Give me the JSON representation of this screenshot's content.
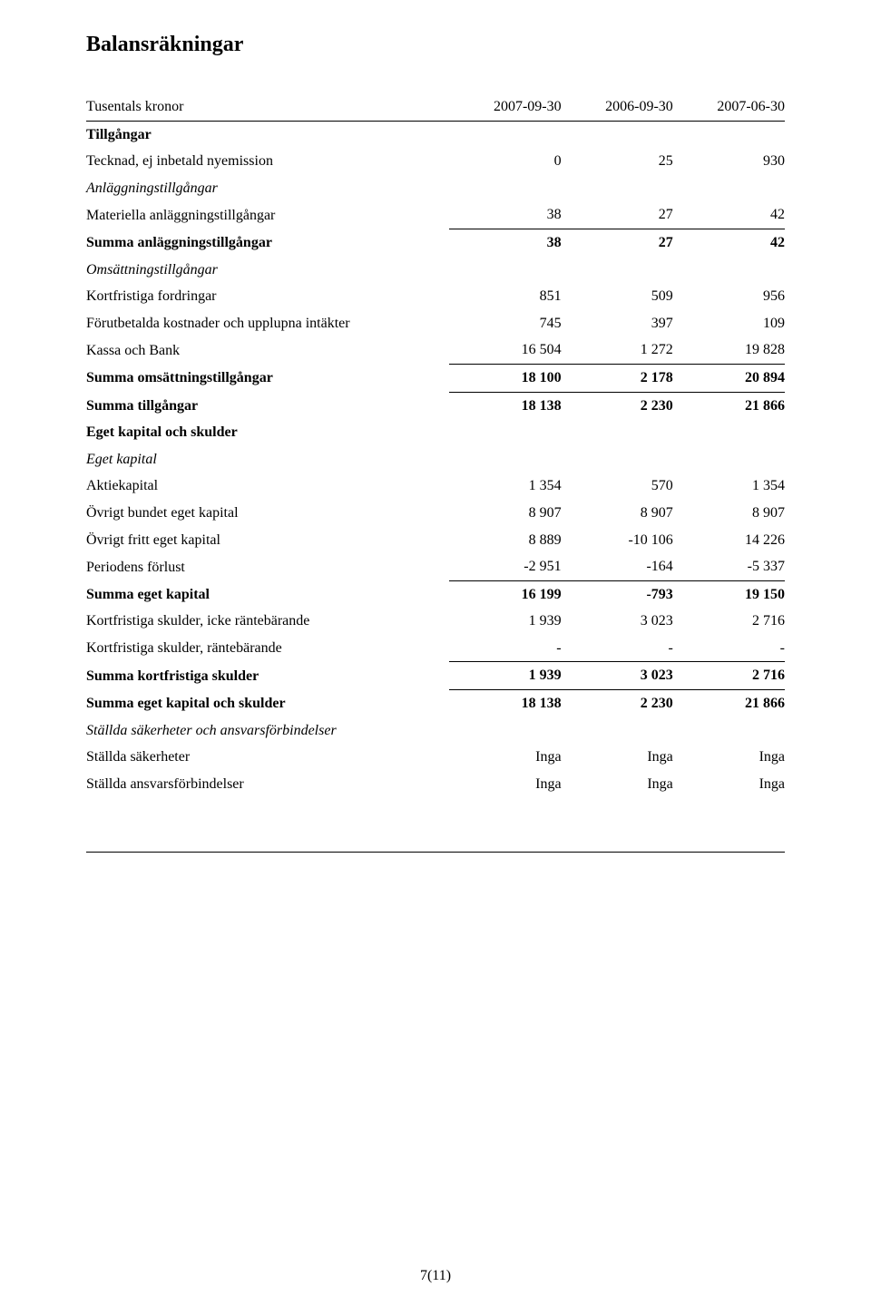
{
  "title": "Balansräkningar",
  "header": {
    "label": "Tusentals kronor",
    "col1": "2007-09-30",
    "col2": "2006-09-30",
    "col3": "2007-06-30"
  },
  "sections": {
    "tillgangar_title": "Tillgångar",
    "tecknad": {
      "label": "Tecknad, ej inbetald nyemission",
      "v1": "0",
      "v2": "25",
      "v3": "930"
    },
    "anlagg_title": "Anläggningstillgångar",
    "materiella": {
      "label": "Materiella anläggningstillgångar",
      "v1": "38",
      "v2": "27",
      "v3": "42"
    },
    "summa_anlagg": {
      "label": "Summa anläggningstillgångar",
      "v1": "38",
      "v2": "27",
      "v3": "42"
    },
    "omsatt_title": "Omsättningstillgångar",
    "kortfr_fordr": {
      "label": "Kortfristiga fordringar",
      "v1": "851",
      "v2": "509",
      "v3": "956"
    },
    "forutbet": {
      "label": "Förutbetalda kostnader och upplupna intäkter",
      "v1": "745",
      "v2": "397",
      "v3": "109"
    },
    "kassa": {
      "label": "Kassa och Bank",
      "v1": "16 504",
      "v2": "1 272",
      "v3": "19 828"
    },
    "summa_omsatt": {
      "label": "Summa omsättningstillgångar",
      "v1": "18 100",
      "v2": "2 178",
      "v3": "20 894"
    },
    "summa_tillg": {
      "label": "Summa tillgångar",
      "v1": "18 138",
      "v2": "2 230",
      "v3": "21 866"
    },
    "ek_skulder_title": "Eget kapital och skulder",
    "ek_title": "Eget kapital",
    "aktiekapital": {
      "label": "Aktiekapital",
      "v1": "1 354",
      "v2": "570",
      "v3": "1 354"
    },
    "ovr_bundet": {
      "label": "Övrigt bundet eget kapital",
      "v1": "8 907",
      "v2": "8 907",
      "v3": "8 907"
    },
    "ovr_fritt": {
      "label": "Övrigt fritt eget kapital",
      "v1": "8 889",
      "v2": "-10 106",
      "v3": "14 226"
    },
    "period_forlust": {
      "label": "Periodens förlust",
      "v1": "-2 951",
      "v2": "-164",
      "v3": "-5 337"
    },
    "summa_ek": {
      "label": "Summa eget kapital",
      "v1": "16 199",
      "v2": "-793",
      "v3": "19 150"
    },
    "ks_icke": {
      "label": "Kortfristiga skulder, icke räntebärande",
      "v1": "1 939",
      "v2": "3 023",
      "v3": "2 716"
    },
    "ks_rante": {
      "label": "Kortfristiga skulder, räntebärande",
      "v1": "-",
      "v2": "-",
      "v3": "-"
    },
    "summa_ks": {
      "label": "Summa kortfristiga skulder",
      "v1": "1 939",
      "v2": "3 023",
      "v3": "2 716"
    },
    "summa_ek_skulder": {
      "label": "Summa eget kapital och skulder",
      "v1": "18 138",
      "v2": "2 230",
      "v3": "21 866"
    },
    "stallda_title": "Ställda säkerheter och ansvarsförbindelser",
    "stallda_sak": {
      "label": "Ställda säkerheter",
      "v1": "Inga",
      "v2": "Inga",
      "v3": "Inga"
    },
    "stallda_ansvar": {
      "label": "Ställda ansvarsförbindelser",
      "v1": "Inga",
      "v2": "Inga",
      "v3": "Inga"
    }
  },
  "footer": "7(11)"
}
